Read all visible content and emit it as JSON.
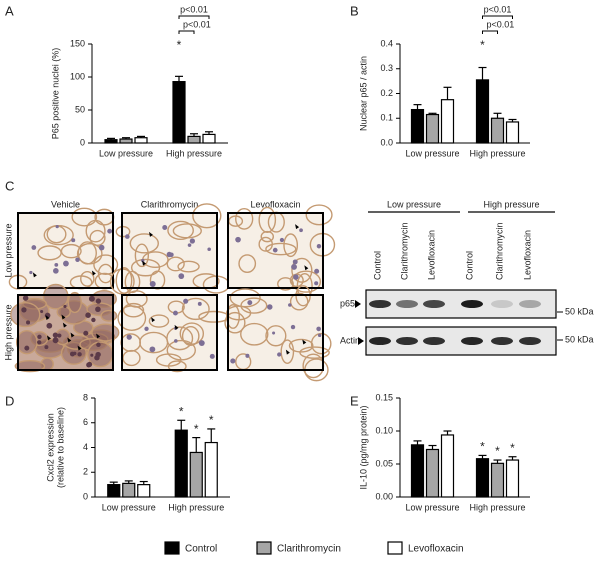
{
  "panels": [
    "A",
    "B",
    "C",
    "D",
    "E"
  ],
  "legend": [
    {
      "name": "Control",
      "color": "#000000"
    },
    {
      "name": "Clarithromycin",
      "color": "#a6a6a6"
    },
    {
      "name": "Levofloxacin",
      "color": "#ffffff"
    }
  ],
  "chart_data": [
    {
      "type": "bar",
      "ylabel": [
        "P65 positive nuclei (%)"
      ],
      "categories": [
        "Low pressure",
        "High pressure"
      ],
      "series": [
        {
          "values": [
            5,
            93
          ],
          "errors": [
            2,
            8
          ]
        },
        {
          "values": [
            6,
            10
          ],
          "errors": [
            2,
            4
          ]
        },
        {
          "values": [
            8,
            13
          ],
          "errors": [
            2,
            4
          ]
        }
      ],
      "ylim": [
        0,
        150
      ],
      "yticks": [
        0,
        50,
        100,
        150
      ],
      "annotations": {
        "star": "*",
        "p_values": [
          "p<0.01",
          "p<0.01"
        ]
      }
    },
    {
      "type": "bar",
      "ylabel": [
        "Nuclear p65 / actin"
      ],
      "categories": [
        "Low pressure",
        "High pressure"
      ],
      "series": [
        {
          "values": [
            0.135,
            0.255
          ],
          "errors": [
            0.02,
            0.05
          ]
        },
        {
          "values": [
            0.115,
            0.1
          ],
          "errors": [
            0.005,
            0.02
          ]
        },
        {
          "values": [
            0.175,
            0.085
          ],
          "errors": [
            0.05,
            0.01
          ]
        }
      ],
      "ylim": [
        0,
        0.4
      ],
      "yticks": [
        {
          "value": 0,
          "label": "0.0"
        },
        0.1,
        0.2,
        0.3,
        0.4
      ],
      "annotations": {
        "star": "*",
        "p_values": [
          "p<0.01",
          "p<0.01"
        ]
      }
    },
    {
      "type": "bar",
      "ylabel": [
        "Cxcl2 expression",
        "(relative to baseline)"
      ],
      "categories": [
        "Low pressure",
        "High pressure"
      ],
      "series": [
        {
          "values": [
            1.0,
            5.4
          ],
          "errors": [
            0.2,
            0.8
          ]
        },
        {
          "values": [
            1.1,
            3.6
          ],
          "errors": [
            0.2,
            1.2
          ]
        },
        {
          "values": [
            1.0,
            4.4
          ],
          "errors": [
            0.25,
            1.1
          ]
        }
      ],
      "ylim": [
        0,
        8
      ],
      "yticks": [
        0,
        2,
        4,
        6,
        8
      ],
      "annotations": {
        "stars": [
          "*",
          "*",
          "*"
        ]
      }
    },
    {
      "type": "bar",
      "ylabel": [
        "IL-10 (pg/mg protein)"
      ],
      "categories": [
        "Low pressure",
        "High pressure"
      ],
      "series": [
        {
          "values": [
            0.079,
            0.058
          ],
          "errors": [
            0.006,
            0.005
          ]
        },
        {
          "values": [
            0.072,
            0.051
          ],
          "errors": [
            0.006,
            0.005
          ]
        },
        {
          "values": [
            0.094,
            0.056
          ],
          "errors": [
            0.006,
            0.005
          ]
        }
      ],
      "ylim": [
        0,
        0.15
      ],
      "yticks": [
        {
          "value": 0,
          "label": "0.00"
        },
        0.05,
        {
          "value": 0.1,
          "label": "0.10"
        },
        0.15
      ],
      "annotations": {
        "stars": [
          "*",
          "*",
          "*"
        ]
      }
    }
  ],
  "micrographs": {
    "columns": [
      "Vehicle",
      "Clarithromycin",
      "Levofloxacin"
    ],
    "rows": [
      "Low pressure",
      "High pressure"
    ]
  },
  "western_blot": {
    "groups": [
      "Low pressure",
      "High pressure"
    ],
    "lanes": [
      "Control",
      "Clarithromycin",
      "Levofloxacin",
      "Control",
      "Clarithromycin",
      "Levofloxacin"
    ],
    "rows": [
      "p65",
      "Actin"
    ],
    "marker": "50 kDa"
  }
}
